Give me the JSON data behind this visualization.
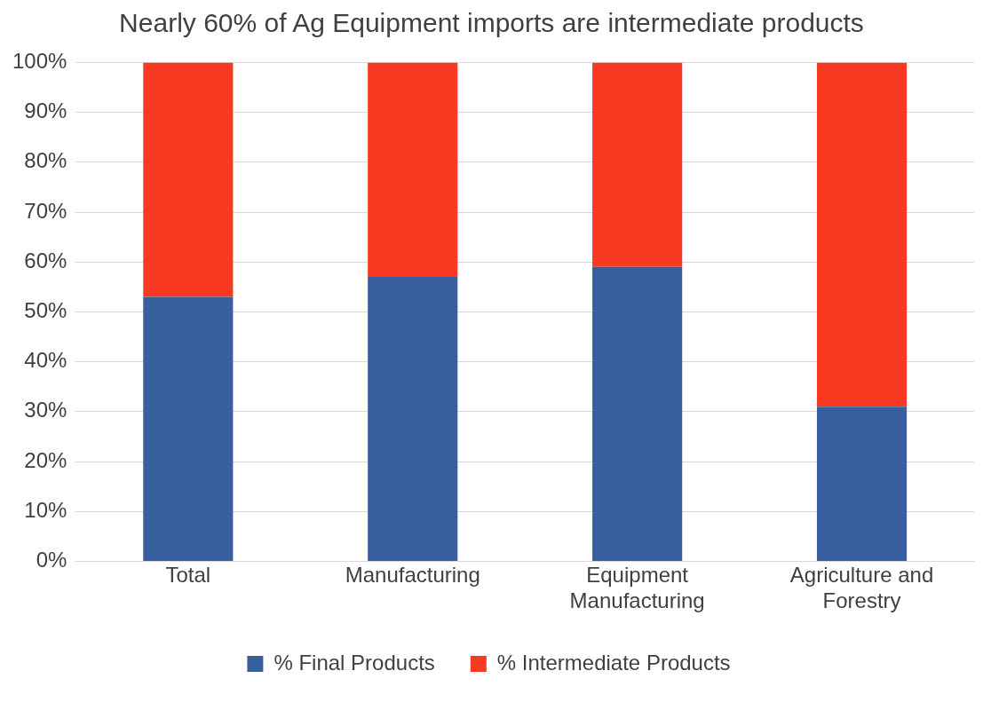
{
  "chart_data": {
    "type": "bar",
    "title": "Nearly 60% of Ag Equipment imports are intermediate products",
    "categories": [
      "Total",
      "Manufacturing",
      "Equipment Manufacturing",
      "Agriculture and Forestry"
    ],
    "series": [
      {
        "name": "% Final Products",
        "color": "#3a5f9e",
        "values": [
          53,
          57,
          59,
          31
        ]
      },
      {
        "name": "% Intermediate Products",
        "color": "#f83a22",
        "values": [
          47,
          43,
          41,
          69
        ]
      }
    ],
    "stacked": true,
    "ylim": [
      0,
      100
    ],
    "yticks": [
      {
        "value": 0,
        "label": "0%"
      },
      {
        "value": 10,
        "label": "10%"
      },
      {
        "value": 20,
        "label": "20%"
      },
      {
        "value": 30,
        "label": "30%"
      },
      {
        "value": 40,
        "label": "40%"
      },
      {
        "value": 50,
        "label": "50%"
      },
      {
        "value": 60,
        "label": "60%"
      },
      {
        "value": 70,
        "label": "70%"
      },
      {
        "value": 80,
        "label": "80%"
      },
      {
        "value": 90,
        "label": "90%"
      },
      {
        "value": 100,
        "label": "100%"
      }
    ],
    "grid": "y",
    "legend": "bottom"
  }
}
